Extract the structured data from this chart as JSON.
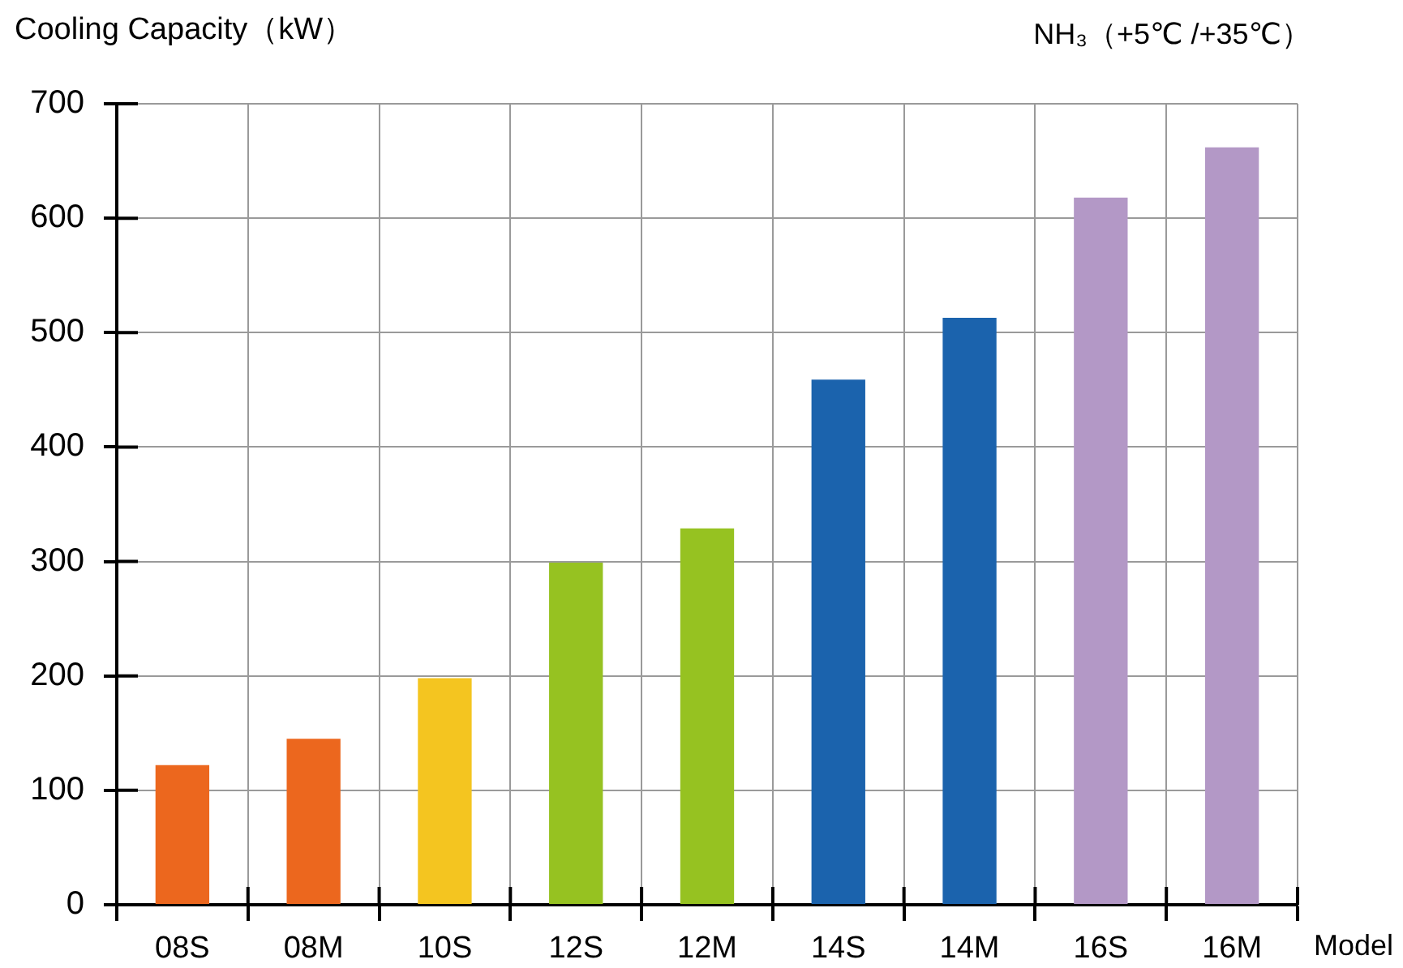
{
  "chart_data": {
    "type": "bar",
    "ylabel": "Cooling Capacity（kW）",
    "subtitle": "NH₃（+5℃ /+35℃）",
    "xlabel": "Model",
    "categories": [
      "08S",
      "08M",
      "10S",
      "12S",
      "12M",
      "14S",
      "14M",
      "16S",
      "16M"
    ],
    "values": [
      122,
      145,
      198,
      299,
      329,
      459,
      513,
      618,
      662
    ],
    "colors": [
      "#ec671e",
      "#ec671e",
      "#f4c520",
      "#96c221",
      "#96c221",
      "#1b63ad",
      "#1b63ad",
      "#b398c6",
      "#b398c6"
    ],
    "ylim": [
      0,
      700
    ],
    "yticks": [
      0,
      100,
      200,
      300,
      400,
      500,
      600,
      700
    ],
    "grid": true
  }
}
